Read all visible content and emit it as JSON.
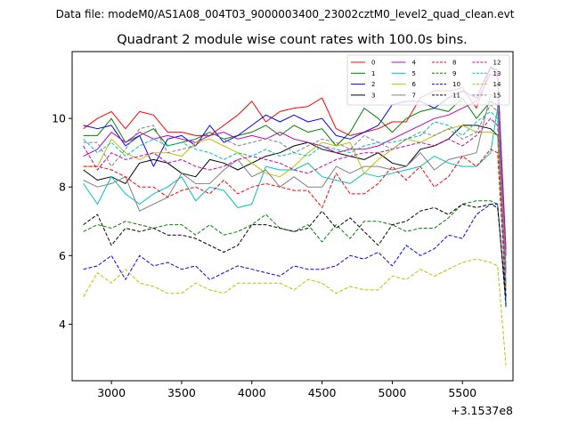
{
  "figure": {
    "suptitle": "Data file: modeM0/AS1A08_004T03_9000003400_23002cztM0_level2_quad_clean.evt"
  },
  "chart_data": {
    "type": "line",
    "title": "Quadrant 2 module wise count rates with 100.0s bins.",
    "xlabel": "",
    "ylabel": "",
    "x_offset_label": "+3.1537e8",
    "xlim": [
      2720,
      5860
    ],
    "ylim": [
      2.35,
      11.95
    ],
    "xticks": [
      3000,
      3500,
      4000,
      4500,
      5000,
      5500
    ],
    "yticks": [
      4,
      6,
      8,
      10
    ],
    "legend_position": "upper right",
    "x": [
      2800,
      2900,
      3000,
      3100,
      3200,
      3300,
      3400,
      3500,
      3600,
      3700,
      3800,
      3900,
      4000,
      4100,
      4200,
      4300,
      4400,
      4500,
      4600,
      4700,
      4800,
      4900,
      5000,
      5100,
      5200,
      5300,
      5400,
      5500,
      5600,
      5700,
      5750,
      5810
    ],
    "series": [
      {
        "name": "0",
        "color": "#ff0000",
        "dash": false,
        "values": [
          9.7,
          10.0,
          10.2,
          9.7,
          10.2,
          10.1,
          9.6,
          9.6,
          9.5,
          9.5,
          9.8,
          10.1,
          10.5,
          9.9,
          10.2,
          10.3,
          10.35,
          10.6,
          9.7,
          9.5,
          9.6,
          9.7,
          9.9,
          9.9,
          10.6,
          10.8,
          10.8,
          10.9,
          10.3,
          11.5,
          11.3,
          6.2
        ]
      },
      {
        "name": "1",
        "color": "#008000",
        "dash": false,
        "values": [
          9.5,
          9.5,
          10.0,
          9.3,
          9.5,
          9.7,
          9.2,
          9.3,
          9.4,
          9.6,
          9.4,
          9.5,
          9.6,
          9.8,
          9.5,
          9.8,
          9.6,
          9.7,
          9.2,
          9.6,
          10.3,
          10.0,
          9.6,
          10.0,
          10.2,
          10.3,
          10.2,
          10.6,
          10.0,
          10.5,
          10.4,
          4.5
        ]
      },
      {
        "name": "2",
        "color": "#0000ff",
        "dash": false,
        "values": [
          9.8,
          9.7,
          9.8,
          9.2,
          9.5,
          8.6,
          9.4,
          9.5,
          9.2,
          9.8,
          9.3,
          9.5,
          9.8,
          10.1,
          9.9,
          10.1,
          9.9,
          10.0,
          9.5,
          9.4,
          9.6,
          9.8,
          10.4,
          10.5,
          10.5,
          10.3,
          10.6,
          10.8,
          10.6,
          11.5,
          11.4,
          5.5
        ]
      },
      {
        "name": "3",
        "color": "#000000",
        "dash": false,
        "values": [
          8.5,
          8.2,
          8.3,
          8.1,
          8.7,
          8.8,
          8.7,
          8.4,
          8.3,
          8.8,
          8.7,
          8.5,
          8.7,
          8.9,
          9.0,
          9.2,
          9.3,
          9.1,
          9.0,
          8.9,
          8.8,
          9.0,
          8.7,
          8.6,
          9.1,
          9.2,
          9.4,
          9.8,
          9.8,
          9.7,
          9.5,
          5.0
        ]
      },
      {
        "name": "4",
        "color": "#bf00bf",
        "dash": false,
        "values": [
          8.9,
          9.1,
          9.6,
          9.3,
          9.6,
          9.4,
          9.5,
          9.4,
          9.3,
          9.5,
          9.6,
          9.4,
          9.5,
          9.4,
          9.6,
          9.4,
          9.3,
          9.2,
          9.0,
          9.1,
          9.1,
          9.2,
          9.4,
          9.6,
          9.8,
          10.0,
          10.1,
          10.3,
          10.5,
          11.3,
          11.2,
          6.0
        ]
      },
      {
        "name": "5",
        "color": "#00bfbf",
        "dash": false,
        "values": [
          8.1,
          7.5,
          8.3,
          7.8,
          7.5,
          7.8,
          8.0,
          8.3,
          7.6,
          8.0,
          7.9,
          7.4,
          7.5,
          8.6,
          8.5,
          8.5,
          8.7,
          8.3,
          8.2,
          8.1,
          8.4,
          8.3,
          8.4,
          8.5,
          8.6,
          8.9,
          8.7,
          8.6,
          8.6,
          9.0,
          10.3,
          4.6
        ]
      },
      {
        "name": "6",
        "color": "#bfbf00",
        "dash": false,
        "values": [
          8.6,
          8.6,
          9.4,
          9.0,
          8.8,
          9.0,
          9.0,
          8.9,
          9.3,
          9.4,
          9.2,
          9.0,
          8.7,
          8.4,
          8.3,
          8.6,
          9.0,
          9.3,
          9.2,
          9.3,
          8.4,
          8.8,
          9.1,
          9.4,
          9.3,
          9.5,
          9.7,
          9.8,
          9.6,
          9.6,
          9.5,
          5.0
        ]
      },
      {
        "name": "7",
        "color": "#808080",
        "dash": false,
        "values": [
          8.2,
          8.0,
          8.1,
          8.3,
          7.3,
          7.5,
          7.7,
          8.4,
          8.1,
          8.1,
          8.5,
          8.8,
          8.3,
          8.5,
          8.0,
          8.3,
          8.0,
          8.0,
          8.6,
          8.4,
          8.6,
          8.6,
          8.5,
          8.6,
          9.0,
          8.5,
          8.8,
          8.9,
          9.0,
          10.7,
          10.6,
          5.5
        ]
      },
      {
        "name": "8",
        "color": "#ff0000",
        "dash": true,
        "values": [
          8.6,
          8.6,
          8.5,
          8.3,
          8.0,
          8.0,
          7.7,
          7.9,
          8.0,
          7.8,
          8.2,
          7.8,
          8.0,
          8.1,
          8.0,
          7.9,
          7.9,
          7.4,
          8.4,
          7.8,
          7.8,
          8.1,
          8.6,
          8.2,
          8.6,
          8.0,
          8.3,
          8.9,
          8.6,
          9.1,
          9.0,
          4.8
        ]
      },
      {
        "name": "9",
        "color": "#008000",
        "dash": true,
        "values": [
          6.7,
          6.9,
          6.8,
          7.0,
          6.9,
          6.8,
          6.9,
          6.9,
          6.6,
          6.9,
          6.6,
          6.7,
          6.9,
          7.2,
          6.8,
          6.7,
          6.9,
          6.4,
          6.9,
          6.5,
          7.0,
          7.0,
          6.9,
          6.7,
          6.8,
          6.8,
          7.1,
          7.5,
          7.6,
          7.6,
          7.5,
          4.6
        ]
      },
      {
        "name": "10",
        "color": "#0000ff",
        "dash": true,
        "values": [
          5.6,
          5.7,
          6.0,
          5.3,
          6.0,
          5.7,
          5.8,
          5.6,
          5.7,
          5.3,
          5.5,
          5.7,
          5.6,
          5.5,
          5.4,
          5.7,
          5.6,
          5.6,
          5.7,
          6.0,
          5.9,
          6.1,
          5.7,
          6.3,
          6.0,
          6.2,
          6.6,
          6.5,
          7.2,
          7.5,
          7.5,
          4.5
        ]
      },
      {
        "name": "11",
        "color": "#000000",
        "dash": true,
        "values": [
          6.9,
          7.2,
          6.3,
          6.8,
          6.7,
          6.8,
          6.6,
          6.6,
          6.5,
          6.3,
          6.1,
          6.3,
          6.9,
          6.9,
          6.8,
          6.7,
          6.8,
          7.3,
          6.8,
          7.1,
          6.7,
          6.3,
          6.9,
          7.0,
          7.3,
          7.4,
          7.2,
          7.5,
          7.4,
          7.5,
          7.4,
          4.8
        ]
      },
      {
        "name": "12",
        "color": "#bf00bf",
        "dash": true,
        "values": [
          9.2,
          8.5,
          9.0,
          8.8,
          8.9,
          9.0,
          8.7,
          8.8,
          8.6,
          8.5,
          8.6,
          8.8,
          8.9,
          8.8,
          8.7,
          8.5,
          8.4,
          8.6,
          8.8,
          8.9,
          9.0,
          9.0,
          9.1,
          9.2,
          9.3,
          9.2,
          9.4,
          9.2,
          9.5,
          10.0,
          9.8,
          5.2
        ]
      },
      {
        "name": "13",
        "color": "#00bfbf",
        "dash": true,
        "values": [
          9.4,
          9.0,
          9.3,
          8.9,
          9.2,
          9.4,
          9.2,
          9.3,
          9.1,
          9.0,
          8.8,
          9.0,
          8.9,
          9.1,
          8.9,
          9.0,
          8.9,
          9.2,
          9.1,
          9.0,
          9.2,
          9.3,
          9.3,
          9.4,
          9.5,
          9.9,
          9.8,
          9.5,
          9.9,
          10.2,
          10.0,
          5.2
        ]
      },
      {
        "name": "14",
        "color": "#bfbf00",
        "dash": true,
        "values": [
          4.8,
          5.5,
          5.2,
          5.6,
          5.2,
          5.1,
          4.9,
          4.9,
          5.2,
          5.0,
          4.9,
          5.2,
          5.2,
          5.2,
          5.2,
          5.0,
          5.3,
          5.2,
          4.9,
          5.1,
          5.0,
          5.0,
          5.4,
          5.3,
          5.6,
          5.4,
          5.6,
          5.8,
          5.9,
          5.8,
          5.7,
          2.8
        ]
      },
      {
        "name": "15",
        "color": "#808080",
        "dash": true,
        "values": [
          9.3,
          9.3,
          8.6,
          9.1,
          9.7,
          9.8,
          9.0,
          9.1,
          9.2,
          9.6,
          9.4,
          9.2,
          9.3,
          9.4,
          9.3,
          9.0,
          9.2,
          9.4,
          9.3,
          9.1,
          9.5,
          9.3,
          9.1,
          9.4,
          9.6,
          9.5,
          9.7,
          9.4,
          9.6,
          10.4,
          10.2,
          5.8
        ]
      }
    ]
  }
}
